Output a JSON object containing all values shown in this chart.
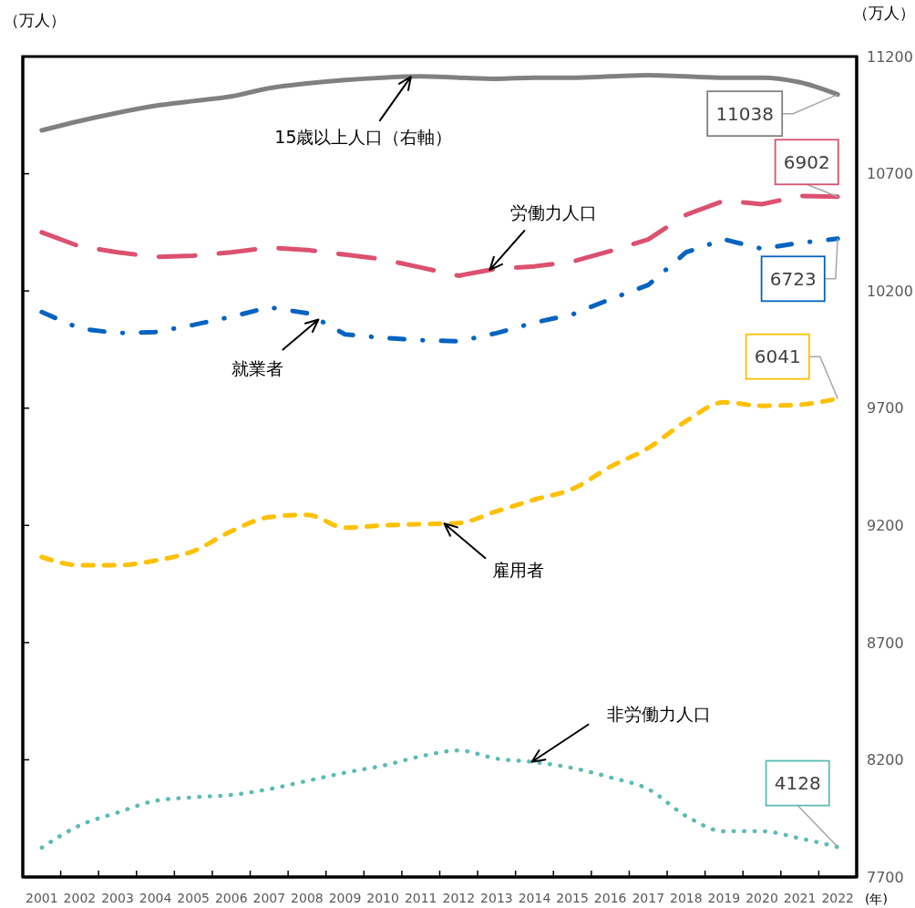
{
  "chart_data": {
    "type": "line",
    "categories": [
      "2001",
      "2002",
      "2003",
      "2004",
      "2005",
      "2006",
      "2007",
      "2008",
      "2009",
      "2010",
      "2011",
      "2012",
      "2013",
      "2014",
      "2015",
      "2016",
      "2017",
      "2018",
      "2019",
      "2020",
      "2021",
      "2022"
    ],
    "xlabel": "(年)",
    "ylabel": "（万人）",
    "y2label": "（万人）",
    "ylim": [
      4000,
      7500
    ],
    "yticks": [
      {
        "value": 4000,
        "label": null
      },
      {
        "value": 4500,
        "label": null
      },
      {
        "value": 5000,
        "label": null
      },
      {
        "value": 5500,
        "label": null
      },
      {
        "value": 6000,
        "label": null
      },
      {
        "value": 6500,
        "label": null
      },
      {
        "value": 7000,
        "label": null
      },
      {
        "value": 7500,
        "label": null
      }
    ],
    "y2lim": [
      7700,
      11200
    ],
    "y2ticks": [
      7700,
      8200,
      8700,
      9200,
      9700,
      10200,
      10700,
      11200
    ],
    "series": [
      {
        "name": "15歳以上人口（右軸）",
        "color": "#808080",
        "axis": "y2",
        "line_style": "solid",
        "values": [
          10885,
          10925,
          10960,
          10990,
          11010,
          11030,
          11065,
          11085,
          11100,
          11110,
          11115,
          11110,
          11105,
          11110,
          11110,
          11115,
          11120,
          11115,
          11110,
          11110,
          11090,
          11038
        ],
        "value_labels": [
          null,
          null,
          null,
          null,
          null,
          null,
          null,
          null,
          null,
          null,
          null,
          null,
          null,
          null,
          null,
          null,
          null,
          null,
          null,
          null,
          null,
          "11038"
        ]
      },
      {
        "name": "労働力人口",
        "color": "#dc5070",
        "line_style": "dashed",
        "values": [
          6750,
          6690,
          6665,
          6645,
          6650,
          6665,
          6685,
          6675,
          6655,
          6635,
          6600,
          6565,
          6595,
          6605,
          6625,
          6670,
          6720,
          6825,
          6885,
          6870,
          6905,
          6902
        ],
        "value_labels": [
          null,
          null,
          null,
          null,
          null,
          null,
          null,
          null,
          null,
          null,
          null,
          null,
          null,
          null,
          null,
          null,
          null,
          null,
          null,
          null,
          null,
          "6902"
        ]
      },
      {
        "name": "就業者",
        "color": "#0563c1",
        "line_style": "dashdot",
        "values": [
          6410,
          6340,
          6320,
          6325,
          6355,
          6390,
          6430,
          6405,
          6315,
          6300,
          6290,
          6285,
          6320,
          6365,
          6400,
          6465,
          6525,
          6665,
          6720,
          6680,
          6705,
          6723
        ],
        "value_labels": [
          null,
          null,
          null,
          null,
          null,
          null,
          null,
          null,
          null,
          null,
          null,
          null,
          null,
          null,
          null,
          null,
          null,
          null,
          null,
          null,
          null,
          "6723"
        ]
      },
      {
        "name": "雇用者",
        "color": "#ffc000",
        "line_style": "dashed",
        "values": [
          5365,
          5330,
          5330,
          5350,
          5390,
          5475,
          5535,
          5545,
          5490,
          5500,
          5505,
          5510,
          5560,
          5610,
          5655,
          5750,
          5830,
          5945,
          6025,
          6010,
          6015,
          6041
        ],
        "value_labels": [
          null,
          null,
          null,
          null,
          null,
          null,
          null,
          null,
          null,
          null,
          null,
          null,
          null,
          null,
          null,
          null,
          null,
          null,
          null,
          null,
          null,
          "6041"
        ]
      },
      {
        "name": "非労働力人口",
        "color": "#5cbcb4",
        "line_style": "dotted",
        "values": [
          4125,
          4220,
          4275,
          4325,
          4340,
          4350,
          4375,
          4410,
          4445,
          4475,
          4515,
          4540,
          4505,
          4490,
          4465,
          4425,
          4375,
          4260,
          4195,
          4195,
          4165,
          4128
        ],
        "value_labels": [
          null,
          null,
          null,
          null,
          null,
          null,
          null,
          null,
          null,
          null,
          null,
          null,
          null,
          null,
          null,
          null,
          null,
          null,
          null,
          null,
          null,
          "4128"
        ]
      }
    ]
  }
}
